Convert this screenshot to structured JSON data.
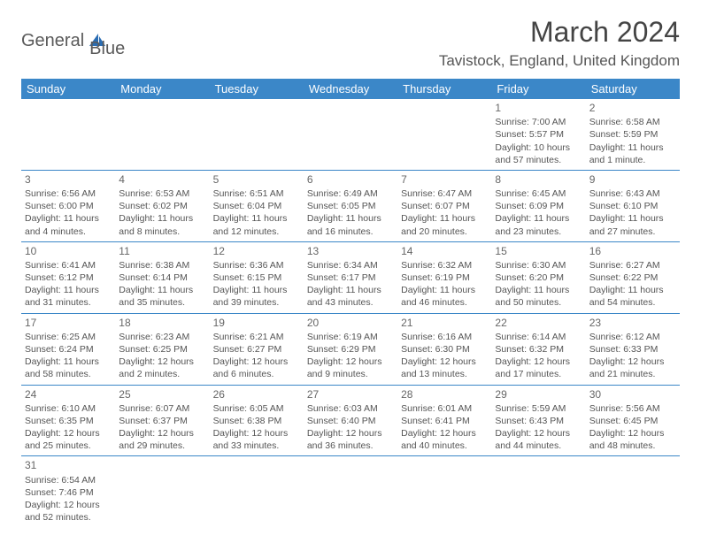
{
  "brand": {
    "general": "General",
    "blue": "Blue"
  },
  "title": "March 2024",
  "location": "Tavistock, England, United Kingdom",
  "colors": {
    "header_bg": "#3b87c8",
    "header_text": "#ffffff",
    "cell_border": "#3b87c8",
    "text": "#555555",
    "title": "#444444",
    "logo_gray": "#5a5a5a",
    "logo_blue": "#2a6db3",
    "background": "#ffffff"
  },
  "typography": {
    "title_fontsize": 32,
    "location_fontsize": 17,
    "dayheader_fontsize": 13,
    "cell_fontsize": 10.5,
    "daynum_fontsize": 12
  },
  "day_headers": [
    "Sunday",
    "Monday",
    "Tuesday",
    "Wednesday",
    "Thursday",
    "Friday",
    "Saturday"
  ],
  "weeks": [
    [
      null,
      null,
      null,
      null,
      null,
      {
        "day": "1",
        "sunrise": "Sunrise: 7:00 AM",
        "sunset": "Sunset: 5:57 PM",
        "daylight": "Daylight: 10 hours and 57 minutes."
      },
      {
        "day": "2",
        "sunrise": "Sunrise: 6:58 AM",
        "sunset": "Sunset: 5:59 PM",
        "daylight": "Daylight: 11 hours and 1 minute."
      }
    ],
    [
      {
        "day": "3",
        "sunrise": "Sunrise: 6:56 AM",
        "sunset": "Sunset: 6:00 PM",
        "daylight": "Daylight: 11 hours and 4 minutes."
      },
      {
        "day": "4",
        "sunrise": "Sunrise: 6:53 AM",
        "sunset": "Sunset: 6:02 PM",
        "daylight": "Daylight: 11 hours and 8 minutes."
      },
      {
        "day": "5",
        "sunrise": "Sunrise: 6:51 AM",
        "sunset": "Sunset: 6:04 PM",
        "daylight": "Daylight: 11 hours and 12 minutes."
      },
      {
        "day": "6",
        "sunrise": "Sunrise: 6:49 AM",
        "sunset": "Sunset: 6:05 PM",
        "daylight": "Daylight: 11 hours and 16 minutes."
      },
      {
        "day": "7",
        "sunrise": "Sunrise: 6:47 AM",
        "sunset": "Sunset: 6:07 PM",
        "daylight": "Daylight: 11 hours and 20 minutes."
      },
      {
        "day": "8",
        "sunrise": "Sunrise: 6:45 AM",
        "sunset": "Sunset: 6:09 PM",
        "daylight": "Daylight: 11 hours and 23 minutes."
      },
      {
        "day": "9",
        "sunrise": "Sunrise: 6:43 AM",
        "sunset": "Sunset: 6:10 PM",
        "daylight": "Daylight: 11 hours and 27 minutes."
      }
    ],
    [
      {
        "day": "10",
        "sunrise": "Sunrise: 6:41 AM",
        "sunset": "Sunset: 6:12 PM",
        "daylight": "Daylight: 11 hours and 31 minutes."
      },
      {
        "day": "11",
        "sunrise": "Sunrise: 6:38 AM",
        "sunset": "Sunset: 6:14 PM",
        "daylight": "Daylight: 11 hours and 35 minutes."
      },
      {
        "day": "12",
        "sunrise": "Sunrise: 6:36 AM",
        "sunset": "Sunset: 6:15 PM",
        "daylight": "Daylight: 11 hours and 39 minutes."
      },
      {
        "day": "13",
        "sunrise": "Sunrise: 6:34 AM",
        "sunset": "Sunset: 6:17 PM",
        "daylight": "Daylight: 11 hours and 43 minutes."
      },
      {
        "day": "14",
        "sunrise": "Sunrise: 6:32 AM",
        "sunset": "Sunset: 6:19 PM",
        "daylight": "Daylight: 11 hours and 46 minutes."
      },
      {
        "day": "15",
        "sunrise": "Sunrise: 6:30 AM",
        "sunset": "Sunset: 6:20 PM",
        "daylight": "Daylight: 11 hours and 50 minutes."
      },
      {
        "day": "16",
        "sunrise": "Sunrise: 6:27 AM",
        "sunset": "Sunset: 6:22 PM",
        "daylight": "Daylight: 11 hours and 54 minutes."
      }
    ],
    [
      {
        "day": "17",
        "sunrise": "Sunrise: 6:25 AM",
        "sunset": "Sunset: 6:24 PM",
        "daylight": "Daylight: 11 hours and 58 minutes."
      },
      {
        "day": "18",
        "sunrise": "Sunrise: 6:23 AM",
        "sunset": "Sunset: 6:25 PM",
        "daylight": "Daylight: 12 hours and 2 minutes."
      },
      {
        "day": "19",
        "sunrise": "Sunrise: 6:21 AM",
        "sunset": "Sunset: 6:27 PM",
        "daylight": "Daylight: 12 hours and 6 minutes."
      },
      {
        "day": "20",
        "sunrise": "Sunrise: 6:19 AM",
        "sunset": "Sunset: 6:29 PM",
        "daylight": "Daylight: 12 hours and 9 minutes."
      },
      {
        "day": "21",
        "sunrise": "Sunrise: 6:16 AM",
        "sunset": "Sunset: 6:30 PM",
        "daylight": "Daylight: 12 hours and 13 minutes."
      },
      {
        "day": "22",
        "sunrise": "Sunrise: 6:14 AM",
        "sunset": "Sunset: 6:32 PM",
        "daylight": "Daylight: 12 hours and 17 minutes."
      },
      {
        "day": "23",
        "sunrise": "Sunrise: 6:12 AM",
        "sunset": "Sunset: 6:33 PM",
        "daylight": "Daylight: 12 hours and 21 minutes."
      }
    ],
    [
      {
        "day": "24",
        "sunrise": "Sunrise: 6:10 AM",
        "sunset": "Sunset: 6:35 PM",
        "daylight": "Daylight: 12 hours and 25 minutes."
      },
      {
        "day": "25",
        "sunrise": "Sunrise: 6:07 AM",
        "sunset": "Sunset: 6:37 PM",
        "daylight": "Daylight: 12 hours and 29 minutes."
      },
      {
        "day": "26",
        "sunrise": "Sunrise: 6:05 AM",
        "sunset": "Sunset: 6:38 PM",
        "daylight": "Daylight: 12 hours and 33 minutes."
      },
      {
        "day": "27",
        "sunrise": "Sunrise: 6:03 AM",
        "sunset": "Sunset: 6:40 PM",
        "daylight": "Daylight: 12 hours and 36 minutes."
      },
      {
        "day": "28",
        "sunrise": "Sunrise: 6:01 AM",
        "sunset": "Sunset: 6:41 PM",
        "daylight": "Daylight: 12 hours and 40 minutes."
      },
      {
        "day": "29",
        "sunrise": "Sunrise: 5:59 AM",
        "sunset": "Sunset: 6:43 PM",
        "daylight": "Daylight: 12 hours and 44 minutes."
      },
      {
        "day": "30",
        "sunrise": "Sunrise: 5:56 AM",
        "sunset": "Sunset: 6:45 PM",
        "daylight": "Daylight: 12 hours and 48 minutes."
      }
    ],
    [
      {
        "day": "31",
        "sunrise": "Sunrise: 6:54 AM",
        "sunset": "Sunset: 7:46 PM",
        "daylight": "Daylight: 12 hours and 52 minutes."
      },
      null,
      null,
      null,
      null,
      null,
      null
    ]
  ]
}
